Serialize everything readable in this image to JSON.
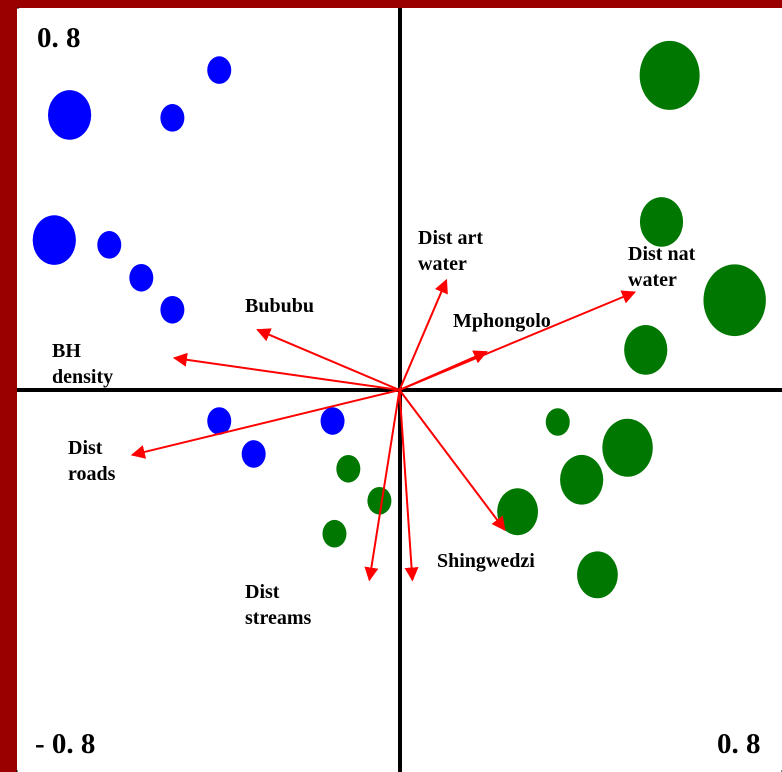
{
  "chart_data": {
    "type": "scatter",
    "xlim": [
      -0.8,
      0.8
    ],
    "ylim": [
      -0.8,
      0.8
    ],
    "xticks": [
      {
        "value": -0.8,
        "label": "- 0. 8"
      },
      {
        "value": 0.8,
        "label": "0. 8"
      }
    ],
    "yticks": [
      {
        "value": 0.8,
        "label": "0. 8"
      }
    ],
    "series": [
      {
        "color": "#0000ff",
        "x": [
          -0.377,
          -0.69,
          -0.475,
          -0.722,
          -0.607,
          -0.54,
          -0.475,
          -0.377,
          -0.305,
          -0.14
        ],
        "values": [
          0.67,
          0.576,
          0.57,
          0.314,
          0.304,
          0.235,
          0.168,
          -0.065,
          -0.134,
          -0.065
        ],
        "sizes": [
          1,
          1.8,
          1,
          1.8,
          1,
          1,
          1,
          1,
          1,
          1
        ]
      },
      {
        "color": "#007700",
        "x": [
          0.565,
          0.548,
          0.701,
          0.515,
          0.331,
          0.477,
          0.381,
          0.247,
          -0.107,
          -0.042,
          -0.136,
          0.414
        ],
        "values": [
          0.659,
          0.352,
          0.188,
          0.084,
          -0.067,
          -0.121,
          -0.188,
          -0.255,
          -0.165,
          -0.232,
          -0.301,
          -0.387
        ],
        "sizes": [
          2.5,
          1.8,
          2.6,
          1.8,
          1,
          2.1,
          1.8,
          1.7,
          1,
          1,
          1,
          1.7
        ]
      }
    ],
    "vectors": {
      "color": "#ff0000",
      "names": [
        "Bububu",
        "BH density",
        "Dist roads",
        "Dist streams",
        null,
        "Shingwedzi",
        "Dist art water",
        "Mphongolo",
        "Dist nat water"
      ],
      "x": [
        -0.297,
        -0.471,
        -0.559,
        -0.063,
        0.027,
        0.22,
        0.098,
        0.182,
        0.492
      ],
      "y": [
        0.126,
        0.067,
        -0.136,
        -0.398,
        -0.398,
        -0.293,
        0.23,
        0.08,
        0.205
      ]
    }
  }
}
